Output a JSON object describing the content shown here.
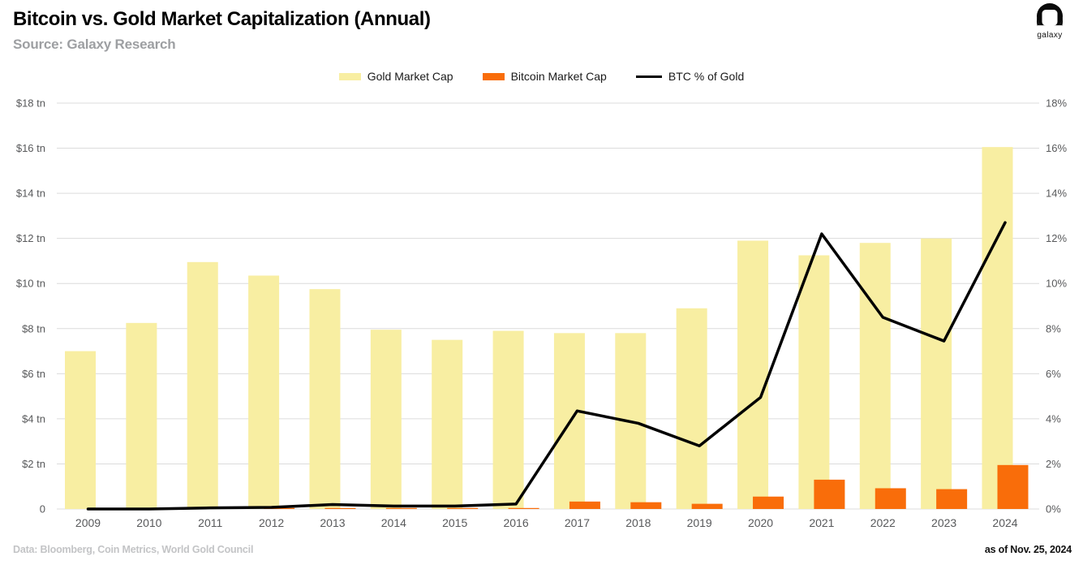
{
  "header": {
    "title": "Bitcoin vs. Gold Market Capitalization (Annual)",
    "subtitle": "Source: Galaxy Research",
    "logo_label": "galaxy"
  },
  "footer": {
    "left": "Data: Bloomberg, Coin Metrics, World Gold Council",
    "right": "as of Nov. 25, 2024"
  },
  "colors": {
    "gold_bar": "#F8EEA2",
    "bitcoin_bar": "#F96D0A",
    "btc_line": "#000000",
    "gridline": "#dcdcdc",
    "axis_text": "#58595b"
  },
  "chart_data": {
    "type": "bar",
    "title": "Bitcoin vs. Gold Market Capitalization (Annual)",
    "categories": [
      "2009",
      "2010",
      "2011",
      "2012",
      "2013",
      "2014",
      "2015",
      "2016",
      "2017",
      "2018",
      "2019",
      "2020",
      "2021",
      "2022",
      "2023",
      "2024"
    ],
    "series": [
      {
        "name": "Gold Market Cap",
        "type": "bar",
        "axis": "left",
        "unit": "$ tn",
        "color": "#F8EEA2",
        "values": [
          7.0,
          8.25,
          10.95,
          10.35,
          9.75,
          7.95,
          7.5,
          7.9,
          7.8,
          7.8,
          8.9,
          11.9,
          11.25,
          11.8,
          12.0,
          16.05
        ]
      },
      {
        "name": "Bitcoin Market Cap",
        "type": "bar",
        "axis": "left",
        "unit": "$ tn",
        "color": "#F96D0A",
        "values": [
          0.0,
          0.0,
          0.01,
          0.01,
          0.02,
          0.01,
          0.01,
          0.02,
          0.33,
          0.3,
          0.23,
          0.55,
          1.3,
          0.92,
          0.88,
          1.95
        ]
      },
      {
        "name": "BTC % of Gold",
        "type": "line",
        "axis": "right",
        "unit": "%",
        "color": "#000000",
        "values": [
          0.0,
          0.0,
          0.05,
          0.07,
          0.2,
          0.13,
          0.13,
          0.22,
          4.35,
          3.8,
          2.8,
          4.95,
          12.2,
          8.5,
          7.45,
          12.7
        ]
      }
    ],
    "left_axis": {
      "min": 0,
      "max": 18,
      "step": 2,
      "tick_labels": [
        "$18 tn",
        "$16 tn",
        "$14 tn",
        "$12 tn",
        "$10 tn",
        "$8 tn",
        "$6 tn",
        "$4 tn",
        "$2 tn",
        "0"
      ]
    },
    "right_axis": {
      "min": 0,
      "max": 18,
      "step": 2,
      "tick_labels": [
        "18%",
        "16%",
        "14%",
        "12%",
        "10%",
        "8%",
        "6%",
        "4%",
        "2%",
        "0%"
      ]
    },
    "grid": true,
    "legend_position": "top"
  }
}
